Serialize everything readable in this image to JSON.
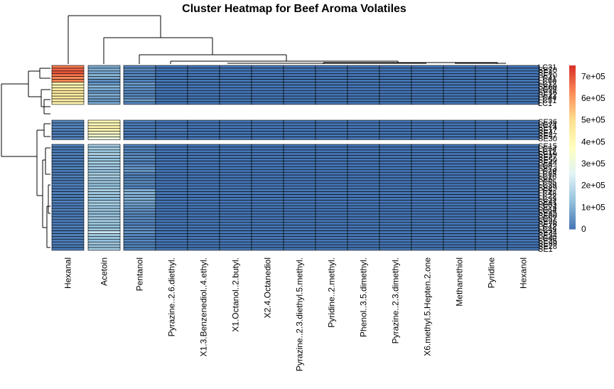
{
  "chart_data": {
    "type": "heatmap",
    "title": "Cluster Heatmap for Beef Aroma Volatiles",
    "columns": [
      "Hexanal",
      "Acetoin",
      "Pentanol",
      "Pyrazine..2.6.diethyl.",
      "X1.3.Benzenediol..4.ethyl.",
      "X1.Octanol..2.butyl.",
      "X2.4.Octanediol",
      "Pyrazine..2.3.diethyl.5.methyl.",
      "Pyridine..2.methyl.",
      "Phenol..3.5.dimethyl.",
      "Pyrazine..2.3.dimethyl.",
      "X6.methyl.5.Hepten.2.one",
      "Methanethiol",
      "Pyridine",
      "Hexanol"
    ],
    "row_labels": [
      "LC31",
      "SE70",
      "SE8",
      "SE10",
      "LC41",
      "LC60",
      "LC12",
      "SE69",
      "LC59",
      "SE16",
      "SE22",
      "LC44",
      "LC51",
      "LC1",
      "SE36",
      "LC24",
      "SE14",
      "SE17",
      "SE4",
      "SE47",
      "SE30",
      "SE15",
      "LC54",
      "LC11",
      "SE19",
      "SE27",
      "SE50",
      "SE44",
      "LC8",
      "SE73",
      "LC29",
      "LC35",
      "LC16",
      "SE5",
      "LC55",
      "LC39",
      "SE29",
      "LC9",
      "LC48",
      "LC22",
      "LC33",
      "SE41",
      "LC63",
      "SE74",
      "LC64",
      "SE45",
      "SE60",
      "LC57",
      "SE26",
      "SE76",
      "LC42",
      "LC49",
      "SE34",
      "SE54",
      "LC40",
      "SE35",
      "SE59",
      "SE28",
      "SE1"
    ],
    "row_groups": [
      14,
      7,
      38
    ],
    "column_groups": [
      1,
      1,
      13
    ],
    "values": [
      [
        650000,
        90000,
        30000,
        0,
        0,
        0,
        0,
        0,
        0,
        0,
        0,
        0,
        0,
        0,
        0
      ],
      [
        680000,
        100000,
        40000,
        0,
        0,
        0,
        0,
        0,
        0,
        0,
        0,
        0,
        0,
        0,
        0
      ],
      [
        700000,
        80000,
        20000,
        0,
        0,
        0,
        0,
        0,
        0,
        0,
        0,
        0,
        0,
        0,
        0
      ],
      [
        660000,
        110000,
        30000,
        0,
        0,
        0,
        0,
        0,
        0,
        0,
        0,
        0,
        0,
        0,
        0
      ],
      [
        630000,
        90000,
        25000,
        0,
        0,
        0,
        0,
        0,
        0,
        0,
        0,
        0,
        0,
        0,
        0
      ],
      [
        640000,
        40000,
        20000,
        0,
        0,
        0,
        0,
        0,
        0,
        0,
        0,
        0,
        0,
        0,
        0
      ],
      [
        420000,
        60000,
        60000,
        0,
        0,
        0,
        0,
        0,
        0,
        0,
        0,
        0,
        0,
        0,
        0
      ],
      [
        430000,
        110000,
        50000,
        0,
        0,
        0,
        0,
        0,
        0,
        0,
        0,
        0,
        0,
        0,
        0
      ],
      [
        450000,
        90000,
        40000,
        0,
        0,
        0,
        0,
        0,
        0,
        0,
        0,
        0,
        0,
        0,
        0
      ],
      [
        470000,
        50000,
        30000,
        0,
        0,
        0,
        0,
        0,
        0,
        0,
        0,
        0,
        0,
        0,
        0
      ],
      [
        440000,
        100000,
        30000,
        0,
        0,
        0,
        0,
        0,
        0,
        0,
        0,
        0,
        0,
        0,
        0
      ],
      [
        460000,
        80000,
        40000,
        0,
        0,
        0,
        0,
        0,
        0,
        0,
        0,
        0,
        0,
        0,
        0
      ],
      [
        430000,
        60000,
        70000,
        0,
        0,
        0,
        0,
        0,
        0,
        0,
        0,
        0,
        0,
        0,
        0
      ],
      [
        420000,
        90000,
        30000,
        0,
        0,
        0,
        0,
        0,
        0,
        0,
        0,
        0,
        0,
        0,
        0
      ],
      [
        30000,
        400000,
        20000,
        0,
        0,
        0,
        0,
        0,
        0,
        0,
        0,
        0,
        0,
        0,
        0
      ],
      [
        20000,
        380000,
        10000,
        0,
        0,
        0,
        0,
        0,
        0,
        0,
        0,
        0,
        0,
        0,
        0
      ],
      [
        30000,
        420000,
        10000,
        0,
        0,
        0,
        0,
        0,
        0,
        0,
        0,
        0,
        0,
        0,
        0
      ],
      [
        20000,
        410000,
        20000,
        20000,
        0,
        0,
        0,
        0,
        0,
        0,
        0,
        0,
        0,
        0,
        0
      ],
      [
        10000,
        360000,
        10000,
        0,
        0,
        0,
        0,
        0,
        0,
        0,
        0,
        0,
        0,
        0,
        0
      ],
      [
        20000,
        350000,
        10000,
        0,
        0,
        0,
        0,
        0,
        0,
        0,
        0,
        0,
        0,
        0,
        0
      ],
      [
        20000,
        300000,
        10000,
        0,
        0,
        0,
        0,
        0,
        0,
        0,
        0,
        0,
        0,
        0,
        0
      ],
      [
        20000,
        150000,
        20000,
        0,
        0,
        0,
        0,
        0,
        0,
        0,
        0,
        0,
        0,
        0,
        0
      ],
      [
        10000,
        160000,
        30000,
        0,
        0,
        0,
        0,
        0,
        0,
        0,
        0,
        0,
        0,
        0,
        0
      ],
      [
        10000,
        140000,
        20000,
        0,
        0,
        0,
        0,
        0,
        0,
        0,
        0,
        0,
        0,
        0,
        0
      ],
      [
        20000,
        170000,
        30000,
        0,
        0,
        0,
        0,
        0,
        0,
        0,
        0,
        0,
        0,
        0,
        0
      ],
      [
        10000,
        150000,
        40000,
        0,
        0,
        0,
        0,
        0,
        0,
        0,
        0,
        0,
        0,
        0,
        0
      ],
      [
        20000,
        130000,
        30000,
        0,
        0,
        0,
        0,
        0,
        0,
        0,
        0,
        0,
        0,
        0,
        0
      ],
      [
        10000,
        160000,
        20000,
        0,
        0,
        0,
        0,
        0,
        0,
        0,
        0,
        0,
        0,
        0,
        0
      ],
      [
        10000,
        140000,
        40000,
        0,
        0,
        0,
        0,
        0,
        0,
        0,
        0,
        0,
        0,
        0,
        0
      ],
      [
        20000,
        150000,
        50000,
        0,
        0,
        0,
        0,
        0,
        0,
        0,
        0,
        0,
        0,
        0,
        0
      ],
      [
        10000,
        130000,
        60000,
        0,
        0,
        0,
        0,
        0,
        0,
        0,
        0,
        0,
        0,
        0,
        0
      ],
      [
        10000,
        160000,
        30000,
        0,
        0,
        0,
        0,
        0,
        0,
        0,
        0,
        0,
        0,
        0,
        0
      ],
      [
        20000,
        170000,
        20000,
        0,
        0,
        0,
        0,
        0,
        0,
        0,
        0,
        0,
        0,
        0,
        0
      ],
      [
        10000,
        140000,
        30000,
        0,
        0,
        0,
        0,
        0,
        0,
        0,
        0,
        0,
        0,
        0,
        0
      ],
      [
        10000,
        150000,
        40000,
        0,
        0,
        0,
        0,
        0,
        0,
        0,
        0,
        0,
        0,
        0,
        0
      ],
      [
        20000,
        120000,
        30000,
        0,
        0,
        0,
        0,
        0,
        0,
        0,
        0,
        0,
        0,
        0,
        0
      ],
      [
        10000,
        140000,
        20000,
        0,
        0,
        0,
        0,
        0,
        0,
        0,
        0,
        0,
        0,
        0,
        0
      ],
      [
        10000,
        160000,
        100000,
        0,
        0,
        0,
        0,
        0,
        0,
        0,
        0,
        0,
        0,
        0,
        0
      ],
      [
        20000,
        150000,
        110000,
        0,
        0,
        0,
        0,
        0,
        0,
        0,
        0,
        0,
        0,
        0,
        0
      ],
      [
        10000,
        140000,
        90000,
        0,
        0,
        0,
        0,
        0,
        0,
        0,
        0,
        0,
        0,
        0,
        0
      ],
      [
        10000,
        130000,
        100000,
        0,
        0,
        0,
        0,
        0,
        0,
        0,
        0,
        0,
        0,
        0,
        0
      ],
      [
        20000,
        150000,
        80000,
        0,
        0,
        0,
        0,
        0,
        0,
        0,
        0,
        0,
        0,
        0,
        0
      ],
      [
        10000,
        160000,
        70000,
        0,
        0,
        0,
        0,
        0,
        0,
        0,
        0,
        0,
        0,
        0,
        0
      ],
      [
        10000,
        140000,
        60000,
        0,
        0,
        0,
        0,
        0,
        0,
        0,
        0,
        0,
        0,
        0,
        0
      ],
      [
        20000,
        150000,
        50000,
        0,
        0,
        0,
        0,
        0,
        0,
        0,
        0,
        0,
        0,
        0,
        0
      ],
      [
        10000,
        130000,
        40000,
        0,
        0,
        0,
        0,
        0,
        0,
        0,
        0,
        0,
        0,
        0,
        0
      ],
      [
        10000,
        140000,
        30000,
        0,
        0,
        0,
        0,
        0,
        0,
        0,
        0,
        0,
        0,
        0,
        0
      ],
      [
        20000,
        150000,
        40000,
        0,
        0,
        0,
        0,
        0,
        0,
        0,
        0,
        0,
        0,
        0,
        0
      ],
      [
        10000,
        160000,
        30000,
        0,
        0,
        0,
        0,
        0,
        0,
        0,
        0,
        0,
        0,
        0,
        0
      ],
      [
        10000,
        140000,
        20000,
        0,
        0,
        0,
        0,
        0,
        0,
        0,
        0,
        0,
        0,
        0,
        0
      ],
      [
        20000,
        130000,
        30000,
        0,
        0,
        0,
        0,
        0,
        0,
        0,
        0,
        0,
        0,
        0,
        0
      ],
      [
        10000,
        140000,
        40000,
        0,
        0,
        0,
        0,
        0,
        0,
        0,
        0,
        0,
        0,
        0,
        0
      ],
      [
        10000,
        210000,
        50000,
        0,
        0,
        0,
        0,
        0,
        0,
        0,
        0,
        0,
        0,
        0,
        0
      ],
      [
        20000,
        150000,
        30000,
        0,
        0,
        0,
        0,
        0,
        0,
        0,
        0,
        0,
        0,
        0,
        0
      ],
      [
        10000,
        140000,
        20000,
        0,
        0,
        0,
        0,
        0,
        0,
        0,
        0,
        0,
        0,
        0,
        0
      ],
      [
        10000,
        130000,
        30000,
        0,
        0,
        0,
        0,
        0,
        0,
        0,
        0,
        0,
        0,
        0,
        0
      ],
      [
        20000,
        150000,
        20000,
        0,
        0,
        0,
        0,
        0,
        0,
        0,
        0,
        0,
        0,
        0,
        0
      ],
      [
        10000,
        140000,
        30000,
        0,
        0,
        0,
        0,
        0,
        0,
        0,
        0,
        0,
        0,
        0,
        0
      ],
      [
        10000,
        150000,
        20000,
        0,
        0,
        0,
        0,
        0,
        0,
        0,
        0,
        0,
        0,
        0,
        0
      ]
    ],
    "color_scale": {
      "min": 0,
      "max": 750000,
      "colors": [
        "#4575b4",
        "#91bfdb",
        "#e0f3f8",
        "#ffffbf",
        "#fee090",
        "#fc8d59",
        "#d73027"
      ]
    },
    "legend": {
      "position": "right",
      "ticks": [
        {
          "value": 0,
          "label": "0"
        },
        {
          "value": 100000,
          "label": "1e+05"
        },
        {
          "value": 200000,
          "label": "2e+05"
        },
        {
          "value": 300000,
          "label": "3e+05"
        },
        {
          "value": 400000,
          "label": "4e+05"
        },
        {
          "value": 500000,
          "label": "5e+05"
        },
        {
          "value": 600000,
          "label": "6e+05"
        },
        {
          "value": 700000,
          "label": "7e+05"
        }
      ]
    }
  }
}
